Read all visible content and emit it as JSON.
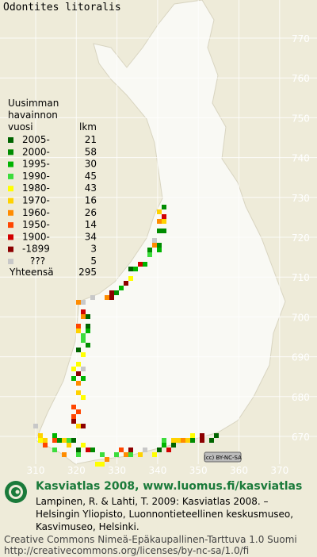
{
  "title": "Odontites litoralis",
  "legend": {
    "header": [
      "Uusimman",
      "havainnon",
      "vuosi"
    ],
    "count_header": "lkm",
    "rows": [
      {
        "label": "2005-",
        "count": 21,
        "color": "#006400"
      },
      {
        "label": "2000-",
        "count": 58,
        "color": "#008c00"
      },
      {
        "label": "1995-",
        "count": 30,
        "color": "#00b400"
      },
      {
        "label": "1990-",
        "count": 45,
        "color": "#3cdc3c"
      },
      {
        "label": "1980-",
        "count": 43,
        "color": "#ffff00"
      },
      {
        "label": "1970-",
        "count": 16,
        "color": "#ffd200"
      },
      {
        "label": "1960-",
        "count": 26,
        "color": "#ff8c00"
      },
      {
        "label": "1950-",
        "count": 14,
        "color": "#ff4600"
      },
      {
        "label": "1900-",
        "count": 34,
        "color": "#d20000"
      },
      {
        "label": "-1899",
        "count": 3,
        "color": "#8c0000"
      },
      {
        "label": "???",
        "count": 5,
        "color": "#c8c8c8"
      }
    ],
    "total_label": "Yhteensä",
    "total": 295
  },
  "grid": {
    "y_labels": [
      "770",
      "760",
      "750",
      "740",
      "730",
      "720",
      "710",
      "700",
      "690",
      "680",
      "670"
    ],
    "x_labels": [
      "310",
      "320",
      "330",
      "340",
      "350",
      "360",
      "370"
    ]
  },
  "badge": "(cc) BY-NC-SA",
  "footer": {
    "heading": "Kasviatlas 2008, www.luomus.fi/kasviatlas",
    "citation": [
      "Lampinen, R. & Lahti, T. 2009: Kasviatlas 2008. –",
      "Helsingin Yliopisto, Luonnontieteellinen keskusmuseo,",
      "Kasvimuseo, Helsinki."
    ],
    "license": [
      "Creative Commons Nimeä-Epäkaupallinen-Tarttuva 1.0 Suomi",
      "http://creativecommons.org/licenses/by-nc-sa/1.0/fi"
    ]
  }
}
